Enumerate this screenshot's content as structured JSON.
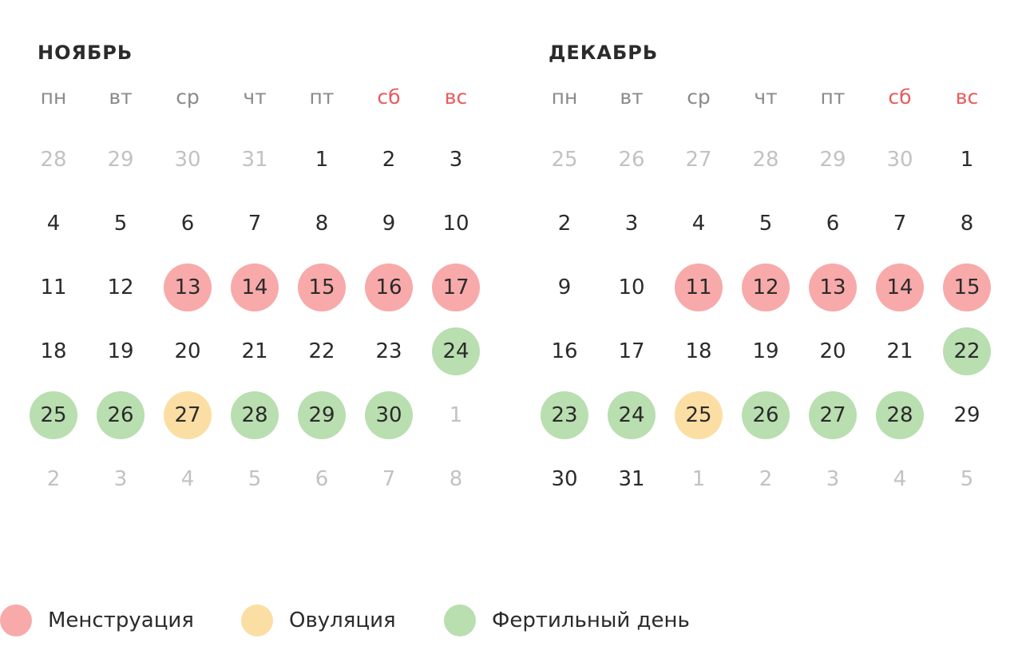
{
  "months": [
    {
      "title": "НОЯБРЬ",
      "weekdays": [
        {
          "label": "пн",
          "weekend": false
        },
        {
          "label": "вт",
          "weekend": false
        },
        {
          "label": "ср",
          "weekend": false
        },
        {
          "label": "чт",
          "weekend": false
        },
        {
          "label": "пт",
          "weekend": false
        },
        {
          "label": "сб",
          "weekend": true
        },
        {
          "label": "вс",
          "weekend": true
        }
      ],
      "days": [
        {
          "n": "28",
          "muted": true,
          "mark": null
        },
        {
          "n": "29",
          "muted": true,
          "mark": null
        },
        {
          "n": "30",
          "muted": true,
          "mark": null
        },
        {
          "n": "31",
          "muted": true,
          "mark": null
        },
        {
          "n": "1",
          "muted": false,
          "mark": null
        },
        {
          "n": "2",
          "muted": false,
          "mark": null
        },
        {
          "n": "3",
          "muted": false,
          "mark": null
        },
        {
          "n": "4",
          "muted": false,
          "mark": null
        },
        {
          "n": "5",
          "muted": false,
          "mark": null
        },
        {
          "n": "6",
          "muted": false,
          "mark": null
        },
        {
          "n": "7",
          "muted": false,
          "mark": null
        },
        {
          "n": "8",
          "muted": false,
          "mark": null
        },
        {
          "n": "9",
          "muted": false,
          "mark": null
        },
        {
          "n": "10",
          "muted": false,
          "mark": null
        },
        {
          "n": "11",
          "muted": false,
          "mark": null
        },
        {
          "n": "12",
          "muted": false,
          "mark": null
        },
        {
          "n": "13",
          "muted": false,
          "mark": "menstruation"
        },
        {
          "n": "14",
          "muted": false,
          "mark": "menstruation"
        },
        {
          "n": "15",
          "muted": false,
          "mark": "menstruation"
        },
        {
          "n": "16",
          "muted": false,
          "mark": "menstruation"
        },
        {
          "n": "17",
          "muted": false,
          "mark": "menstruation"
        },
        {
          "n": "18",
          "muted": false,
          "mark": null
        },
        {
          "n": "19",
          "muted": false,
          "mark": null
        },
        {
          "n": "20",
          "muted": false,
          "mark": null
        },
        {
          "n": "21",
          "muted": false,
          "mark": null
        },
        {
          "n": "22",
          "muted": false,
          "mark": null
        },
        {
          "n": "23",
          "muted": false,
          "mark": null
        },
        {
          "n": "24",
          "muted": false,
          "mark": "fertile"
        },
        {
          "n": "25",
          "muted": false,
          "mark": "fertile"
        },
        {
          "n": "26",
          "muted": false,
          "mark": "fertile"
        },
        {
          "n": "27",
          "muted": false,
          "mark": "ovulation"
        },
        {
          "n": "28",
          "muted": false,
          "mark": "fertile"
        },
        {
          "n": "29",
          "muted": false,
          "mark": "fertile"
        },
        {
          "n": "30",
          "muted": false,
          "mark": "fertile"
        },
        {
          "n": "1",
          "muted": true,
          "mark": null
        },
        {
          "n": "2",
          "muted": true,
          "mark": null
        },
        {
          "n": "3",
          "muted": true,
          "mark": null
        },
        {
          "n": "4",
          "muted": true,
          "mark": null
        },
        {
          "n": "5",
          "muted": true,
          "mark": null
        },
        {
          "n": "6",
          "muted": true,
          "mark": null
        },
        {
          "n": "7",
          "muted": true,
          "mark": null
        },
        {
          "n": "8",
          "muted": true,
          "mark": null
        }
      ]
    },
    {
      "title": "ДЕКАБРЬ",
      "weekdays": [
        {
          "label": "пн",
          "weekend": false
        },
        {
          "label": "вт",
          "weekend": false
        },
        {
          "label": "ср",
          "weekend": false
        },
        {
          "label": "чт",
          "weekend": false
        },
        {
          "label": "пт",
          "weekend": false
        },
        {
          "label": "сб",
          "weekend": true
        },
        {
          "label": "вс",
          "weekend": true
        }
      ],
      "days": [
        {
          "n": "25",
          "muted": true,
          "mark": null
        },
        {
          "n": "26",
          "muted": true,
          "mark": null
        },
        {
          "n": "27",
          "muted": true,
          "mark": null
        },
        {
          "n": "28",
          "muted": true,
          "mark": null
        },
        {
          "n": "29",
          "muted": true,
          "mark": null
        },
        {
          "n": "30",
          "muted": true,
          "mark": null
        },
        {
          "n": "1",
          "muted": false,
          "mark": null
        },
        {
          "n": "2",
          "muted": false,
          "mark": null
        },
        {
          "n": "3",
          "muted": false,
          "mark": null
        },
        {
          "n": "4",
          "muted": false,
          "mark": null
        },
        {
          "n": "5",
          "muted": false,
          "mark": null
        },
        {
          "n": "6",
          "muted": false,
          "mark": null
        },
        {
          "n": "7",
          "muted": false,
          "mark": null
        },
        {
          "n": "8",
          "muted": false,
          "mark": null
        },
        {
          "n": "9",
          "muted": false,
          "mark": null
        },
        {
          "n": "10",
          "muted": false,
          "mark": null
        },
        {
          "n": "11",
          "muted": false,
          "mark": "menstruation"
        },
        {
          "n": "12",
          "muted": false,
          "mark": "menstruation"
        },
        {
          "n": "13",
          "muted": false,
          "mark": "menstruation"
        },
        {
          "n": "14",
          "muted": false,
          "mark": "menstruation"
        },
        {
          "n": "15",
          "muted": false,
          "mark": "menstruation"
        },
        {
          "n": "16",
          "muted": false,
          "mark": null
        },
        {
          "n": "17",
          "muted": false,
          "mark": null
        },
        {
          "n": "18",
          "muted": false,
          "mark": null
        },
        {
          "n": "19",
          "muted": false,
          "mark": null
        },
        {
          "n": "20",
          "muted": false,
          "mark": null
        },
        {
          "n": "21",
          "muted": false,
          "mark": null
        },
        {
          "n": "22",
          "muted": false,
          "mark": "fertile"
        },
        {
          "n": "23",
          "muted": false,
          "mark": "fertile"
        },
        {
          "n": "24",
          "muted": false,
          "mark": "fertile"
        },
        {
          "n": "25",
          "muted": false,
          "mark": "ovulation"
        },
        {
          "n": "26",
          "muted": false,
          "mark": "fertile"
        },
        {
          "n": "27",
          "muted": false,
          "mark": "fertile"
        },
        {
          "n": "28",
          "muted": false,
          "mark": "fertile"
        },
        {
          "n": "29",
          "muted": false,
          "mark": null
        },
        {
          "n": "30",
          "muted": false,
          "mark": null
        },
        {
          "n": "31",
          "muted": false,
          "mark": null
        },
        {
          "n": "1",
          "muted": true,
          "mark": null
        },
        {
          "n": "2",
          "muted": true,
          "mark": null
        },
        {
          "n": "3",
          "muted": true,
          "mark": null
        },
        {
          "n": "4",
          "muted": true,
          "mark": null
        },
        {
          "n": "5",
          "muted": true,
          "mark": null
        }
      ]
    }
  ],
  "legend": [
    {
      "key": "menstruation",
      "label": "Менструация",
      "color": "#f8a9a9"
    },
    {
      "key": "ovulation",
      "label": "Овуляция",
      "color": "#fbdea3"
    },
    {
      "key": "fertile",
      "label": "Фертильный день",
      "color": "#b9deb0"
    }
  ],
  "colors": {
    "text": "#2b2b2b",
    "muted": "#c2c2c2",
    "weekday": "#8a8a8a",
    "weekend": "#e85a5a"
  }
}
